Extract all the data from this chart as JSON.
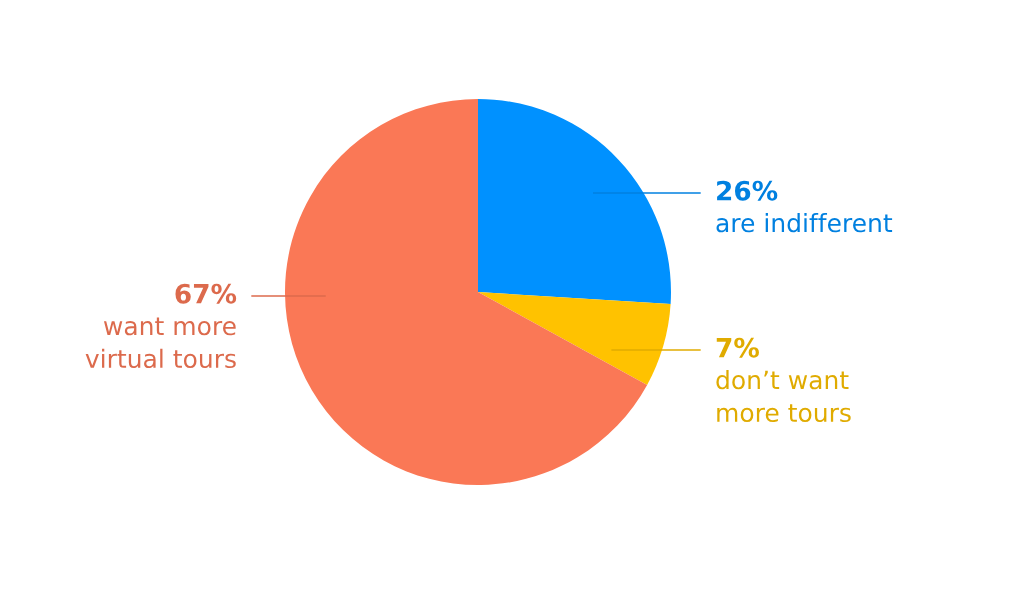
{
  "chart_data": {
    "type": "pie",
    "categories": [
      "are indifferent",
      "don’t want\nmore tours",
      "want more\nvirtual tours"
    ],
    "values": [
      26,
      7,
      67
    ],
    "value_labels": [
      "26%",
      "7%",
      "67%"
    ],
    "colors": [
      "#0091ff",
      "#ffc200",
      "#fa7856"
    ],
    "legend": false
  }
}
